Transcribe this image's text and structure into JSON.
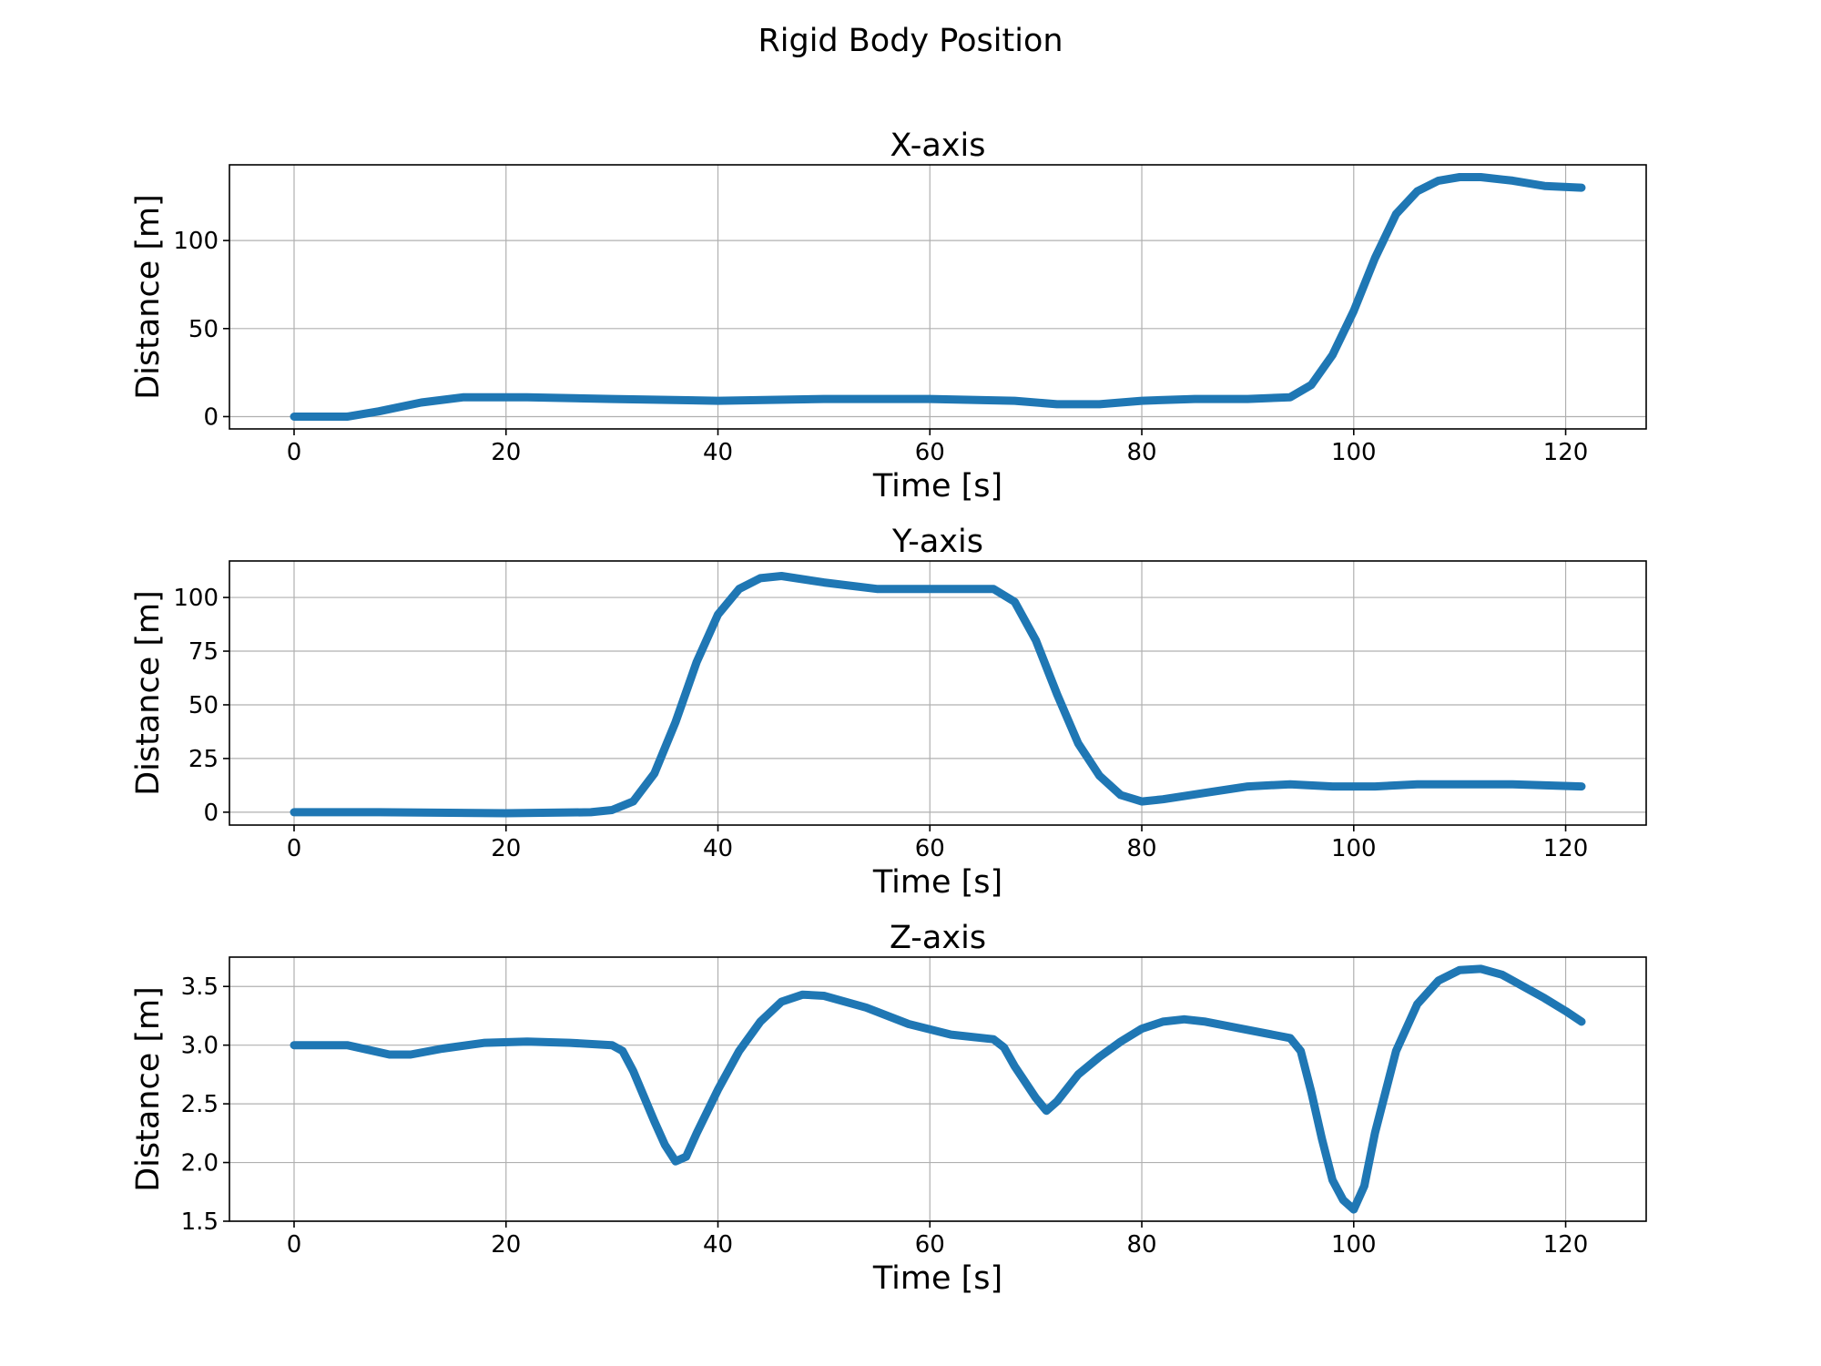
{
  "figure": {
    "title": "Rigid Body Position"
  },
  "style": {
    "line_color": "#1f77b4",
    "grid_color": "#b0b0b0",
    "frame_color": "#000000"
  },
  "chart_data": [
    {
      "type": "line",
      "title": "X-axis",
      "xlabel": "Time [s]",
      "ylabel": "Distance [m]",
      "xlim": [
        -6.1,
        127.6
      ],
      "ylim": [
        -7,
        143
      ],
      "xticks": [
        0,
        20,
        40,
        60,
        80,
        100,
        120
      ],
      "xtick_labels": [
        "0",
        "20",
        "40",
        "60",
        "80",
        "100",
        "120"
      ],
      "yticks": [
        0,
        50,
        100
      ],
      "ytick_labels": [
        "0",
        "50",
        "100"
      ],
      "grid": true,
      "series": [
        {
          "x": [
            0,
            5,
            8,
            12,
            16,
            22,
            30,
            40,
            50,
            60,
            68,
            72,
            76,
            80,
            85,
            90,
            94,
            96,
            98,
            100,
            102,
            104,
            106,
            108,
            110,
            112,
            115,
            118,
            121.5
          ],
          "y": [
            0,
            0,
            3,
            8,
            11,
            11,
            10,
            9,
            10,
            10,
            9,
            7,
            7,
            9,
            10,
            10,
            11,
            18,
            35,
            60,
            90,
            115,
            128,
            134,
            136,
            136,
            134,
            131,
            130
          ]
        }
      ]
    },
    {
      "type": "line",
      "title": "Y-axis",
      "xlabel": "Time [s]",
      "ylabel": "Distance [m]",
      "xlim": [
        -6.1,
        127.6
      ],
      "ylim": [
        -6,
        117
      ],
      "xticks": [
        0,
        20,
        40,
        60,
        80,
        100,
        120
      ],
      "xtick_labels": [
        "0",
        "20",
        "40",
        "60",
        "80",
        "100",
        "120"
      ],
      "yticks": [
        0,
        25,
        50,
        75,
        100
      ],
      "ytick_labels": [
        "0",
        "25",
        "50",
        "75",
        "100"
      ],
      "grid": true,
      "series": [
        {
          "x": [
            0,
            8,
            20,
            28,
            30,
            32,
            34,
            36,
            38,
            40,
            42,
            44,
            46,
            50,
            55,
            60,
            66,
            68,
            70,
            72,
            74,
            76,
            78,
            80,
            82,
            86,
            90,
            94,
            98,
            102,
            106,
            110,
            115,
            121.5
          ],
          "y": [
            0,
            0,
            -0.5,
            0,
            1,
            5,
            18,
            42,
            70,
            92,
            104,
            109,
            110,
            107,
            104,
            104,
            104,
            98,
            80,
            55,
            32,
            17,
            8,
            5,
            6,
            9,
            12,
            13,
            12,
            12,
            13,
            13,
            13,
            12
          ]
        }
      ]
    },
    {
      "type": "line",
      "title": "Z-axis",
      "xlabel": "Time [s]",
      "ylabel": "Distance [m]",
      "xlim": [
        -6.1,
        127.6
      ],
      "ylim": [
        1.5,
        3.75
      ],
      "xticks": [
        0,
        20,
        40,
        60,
        80,
        100,
        120
      ],
      "xtick_labels": [
        "0",
        "20",
        "40",
        "60",
        "80",
        "100",
        "120"
      ],
      "yticks": [
        1.5,
        2.0,
        2.5,
        3.0,
        3.5
      ],
      "ytick_labels": [
        "1.5",
        "2.0",
        "2.5",
        "3.0",
        "3.5"
      ],
      "grid": true,
      "series": [
        {
          "x": [
            0,
            5,
            7,
            9,
            11,
            14,
            18,
            22,
            26,
            30,
            31,
            32,
            34,
            35,
            36,
            37,
            38,
            40,
            42,
            44,
            46,
            48,
            50,
            54,
            58,
            62,
            66,
            67,
            68,
            70,
            71,
            72,
            74,
            76,
            78,
            80,
            82,
            84,
            86,
            90,
            94,
            95,
            96,
            97,
            98,
            99,
            100,
            101,
            102,
            104,
            106,
            108,
            110,
            112,
            114,
            116,
            118,
            120,
            121.5
          ],
          "y": [
            3.0,
            3.0,
            2.96,
            2.92,
            2.92,
            2.97,
            3.02,
            3.03,
            3.02,
            3.0,
            2.95,
            2.78,
            2.35,
            2.15,
            2.01,
            2.05,
            2.25,
            2.62,
            2.95,
            3.2,
            3.37,
            3.43,
            3.42,
            3.32,
            3.18,
            3.09,
            3.05,
            2.98,
            2.82,
            2.55,
            2.44,
            2.52,
            2.75,
            2.9,
            3.03,
            3.14,
            3.2,
            3.22,
            3.2,
            3.13,
            3.06,
            2.95,
            2.6,
            2.2,
            1.85,
            1.68,
            1.6,
            1.8,
            2.25,
            2.95,
            3.35,
            3.55,
            3.64,
            3.65,
            3.6,
            3.5,
            3.4,
            3.29,
            3.2
          ]
        }
      ]
    }
  ]
}
